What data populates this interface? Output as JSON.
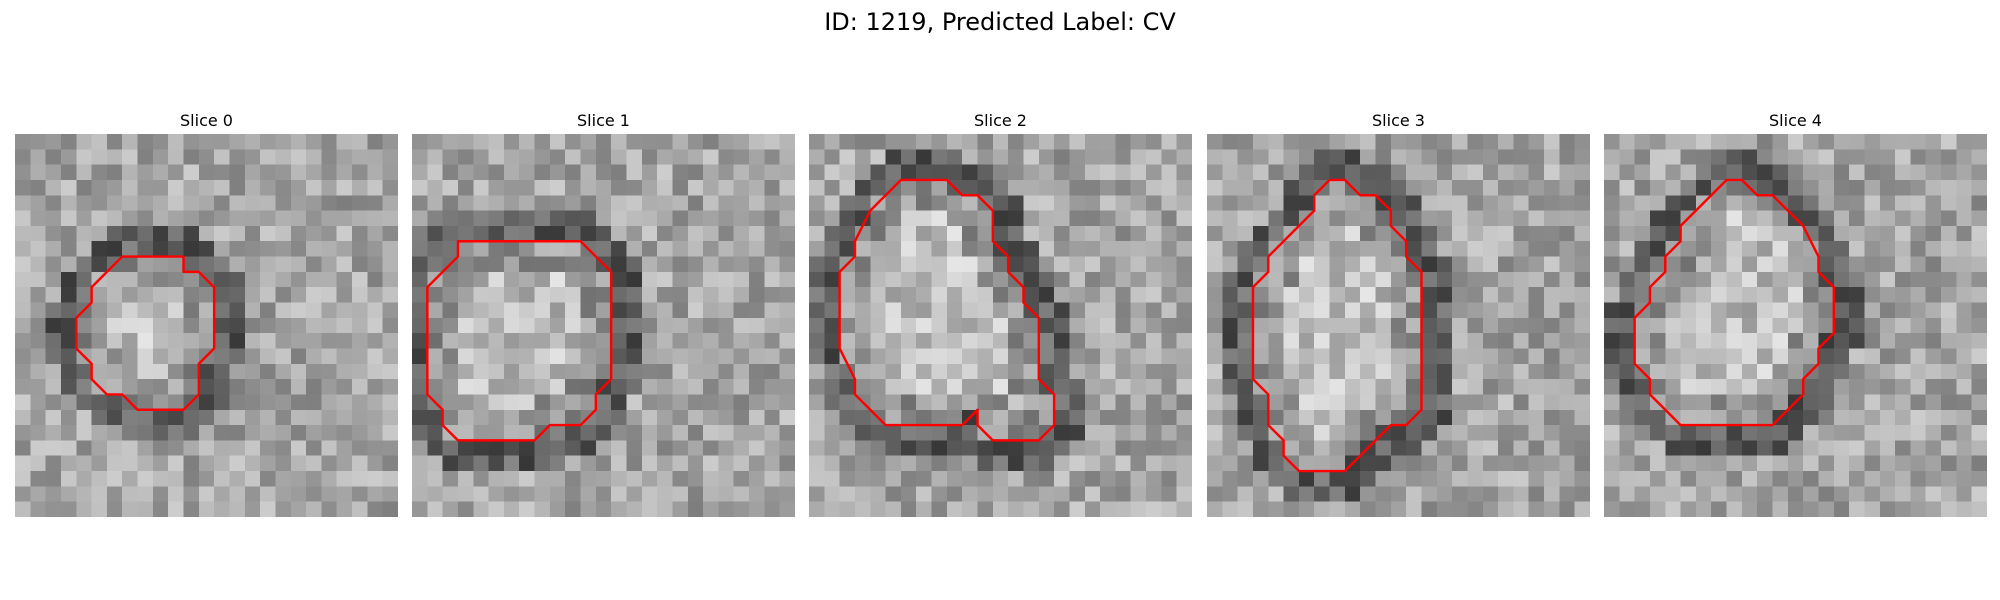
{
  "figure": {
    "title": "ID: 1219, Predicted Label: CV"
  },
  "panels": [
    {
      "title": "Slice 0",
      "seed": 11,
      "outline_color": "#ff0000",
      "contour": [
        [
          8,
          8
        ],
        [
          11,
          8
        ],
        [
          11,
          9
        ],
        [
          12,
          9
        ],
        [
          13,
          10
        ],
        [
          13,
          14
        ],
        [
          12,
          15
        ],
        [
          12,
          17
        ],
        [
          11,
          18
        ],
        [
          8,
          18
        ],
        [
          7,
          17
        ],
        [
          6,
          17
        ],
        [
          5,
          16
        ],
        [
          5,
          15
        ],
        [
          4,
          14
        ],
        [
          4,
          12
        ],
        [
          5,
          11
        ],
        [
          5,
          10
        ],
        [
          6,
          9
        ],
        [
          7,
          8
        ]
      ]
    },
    {
      "title": "Slice 1",
      "seed": 23,
      "outline_color": "#ff0000",
      "contour": [
        [
          4,
          7
        ],
        [
          11,
          7
        ],
        [
          12,
          8
        ],
        [
          13,
          9
        ],
        [
          13,
          16
        ],
        [
          12,
          17
        ],
        [
          12,
          18
        ],
        [
          11,
          19
        ],
        [
          9,
          19
        ],
        [
          8,
          20
        ],
        [
          3,
          20
        ],
        [
          2,
          19
        ],
        [
          2,
          18
        ],
        [
          1,
          17
        ],
        [
          1,
          10
        ],
        [
          2,
          9
        ],
        [
          3,
          8
        ],
        [
          3,
          7
        ]
      ]
    },
    {
      "title": "Slice 2",
      "seed": 37,
      "outline_color": "#ff0000",
      "contour": [
        [
          6,
          3
        ],
        [
          9,
          3
        ],
        [
          10,
          4
        ],
        [
          11,
          4
        ],
        [
          12,
          5
        ],
        [
          12,
          6
        ],
        [
          12,
          7
        ],
        [
          13,
          8
        ],
        [
          13,
          9
        ],
        [
          14,
          10
        ],
        [
          14,
          11
        ],
        [
          15,
          12
        ],
        [
          15,
          16
        ],
        [
          16,
          17
        ],
        [
          16,
          19
        ],
        [
          15,
          20
        ],
        [
          12,
          20
        ],
        [
          11,
          19
        ],
        [
          11,
          18
        ],
        [
          10,
          19
        ],
        [
          5,
          19
        ],
        [
          4,
          18
        ],
        [
          3,
          17
        ],
        [
          3,
          16
        ],
        [
          2,
          14
        ],
        [
          2,
          9
        ],
        [
          3,
          8
        ],
        [
          3,
          7
        ],
        [
          4,
          5
        ],
        [
          5,
          4
        ]
      ]
    },
    {
      "title": "Slice 3",
      "seed": 53,
      "outline_color": "#ff0000",
      "contour": [
        [
          8,
          3
        ],
        [
          9,
          3
        ],
        [
          10,
          4
        ],
        [
          11,
          4
        ],
        [
          12,
          5
        ],
        [
          12,
          6
        ],
        [
          13,
          7
        ],
        [
          13,
          8
        ],
        [
          14,
          9
        ],
        [
          14,
          18
        ],
        [
          13,
          19
        ],
        [
          12,
          19
        ],
        [
          11,
          20
        ],
        [
          10,
          21
        ],
        [
          9,
          22
        ],
        [
          7,
          22
        ],
        [
          6,
          22
        ],
        [
          5,
          21
        ],
        [
          5,
          20
        ],
        [
          4,
          19
        ],
        [
          4,
          18
        ],
        [
          4,
          17
        ],
        [
          3,
          16
        ],
        [
          3,
          10
        ],
        [
          4,
          9
        ],
        [
          4,
          8
        ],
        [
          5,
          7
        ],
        [
          6,
          6
        ],
        [
          7,
          5
        ],
        [
          7,
          4
        ]
      ]
    },
    {
      "title": "Slice 4",
      "seed": 71,
      "outline_color": "#ff0000",
      "contour": [
        [
          8,
          3
        ],
        [
          9,
          3
        ],
        [
          10,
          4
        ],
        [
          11,
          4
        ],
        [
          12,
          5
        ],
        [
          13,
          6
        ],
        [
          14,
          8
        ],
        [
          14,
          9
        ],
        [
          15,
          10
        ],
        [
          15,
          13
        ],
        [
          14,
          14
        ],
        [
          14,
          15
        ],
        [
          13,
          16
        ],
        [
          13,
          17
        ],
        [
          12,
          18
        ],
        [
          11,
          19
        ],
        [
          8,
          19
        ],
        [
          6,
          19
        ],
        [
          5,
          19
        ],
        [
          4,
          18
        ],
        [
          3,
          17
        ],
        [
          3,
          16
        ],
        [
          2,
          15
        ],
        [
          2,
          12
        ],
        [
          3,
          11
        ],
        [
          3,
          10
        ],
        [
          4,
          9
        ],
        [
          4,
          8
        ],
        [
          5,
          7
        ],
        [
          5,
          6
        ],
        [
          6,
          5
        ],
        [
          7,
          4
        ]
      ]
    }
  ]
}
